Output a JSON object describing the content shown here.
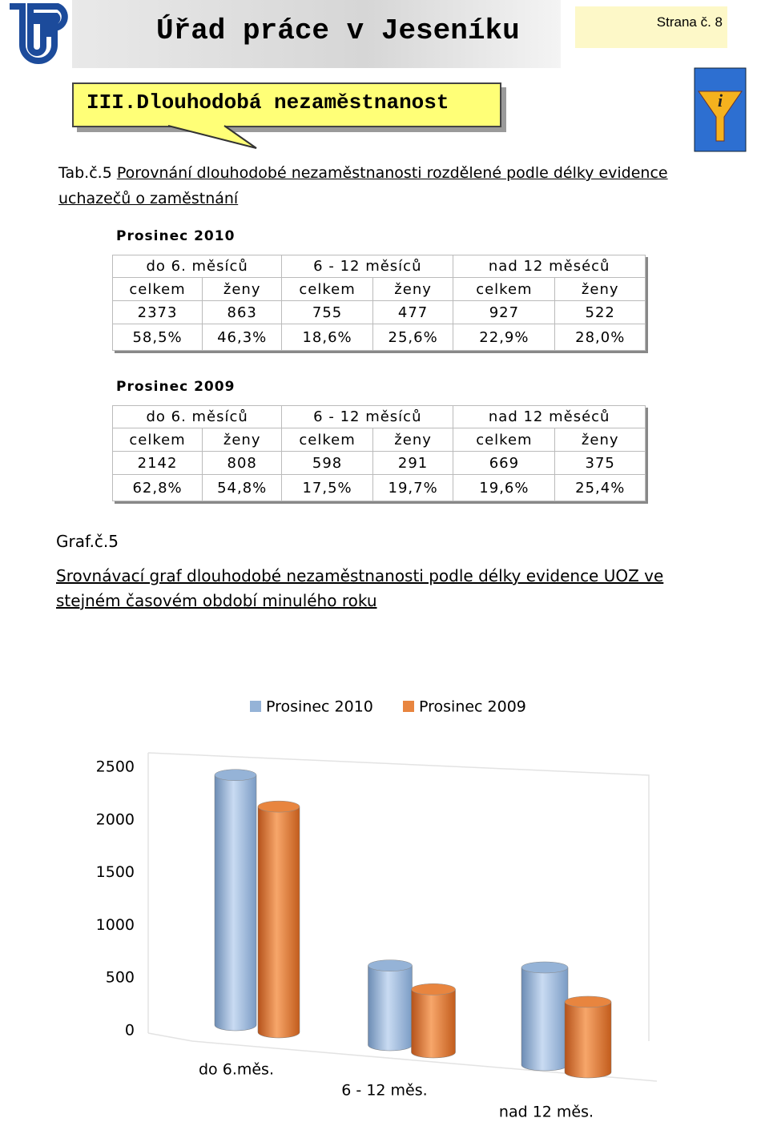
{
  "header": {
    "title": "Úřad práce v Jeseníku",
    "page": "Strana č. 8"
  },
  "section": {
    "title": "III.Dlouhodobá nezaměstnanost"
  },
  "table_caption": {
    "label": "Tab.č.5",
    "text": "Porovnání dlouhodobé nezaměstnanosti rozdělené podle délky evidence uchazečů o zaměstnání"
  },
  "tables": [
    {
      "title": "Prosinec 2010",
      "groups": [
        "do 6. měsíců",
        "6 - 12 měsíců",
        "nad 12 měséců"
      ],
      "columns": [
        "celkem",
        "ženy",
        "celkem",
        "ženy",
        "celkem",
        "ženy"
      ],
      "rows": [
        [
          "2373",
          "863",
          "755",
          "477",
          "927",
          "522"
        ],
        [
          "58,5%",
          "46,3%",
          "18,6%",
          "25,6%",
          "22,9%",
          "28,0%"
        ]
      ]
    },
    {
      "title": "Prosinec 2009",
      "groups": [
        "do 6. měsíců",
        "6 - 12 měsíců",
        "nad 12 měséců"
      ],
      "columns": [
        "celkem",
        "ženy",
        "celkem",
        "ženy",
        "celkem",
        "ženy"
      ],
      "rows": [
        [
          "2142",
          "808",
          "598",
          "291",
          "669",
          "375"
        ],
        [
          "62,8%",
          "54,8%",
          "17,5%",
          "19,7%",
          "19,6%",
          "25,4%"
        ]
      ]
    }
  ],
  "chart_caption": {
    "label": "Graf.č.5",
    "text": "Srovnávací graf dlouhodobé nezaměstnanosti podle délky evidence UOZ ve stejném časovém období minulého roku"
  },
  "chart_data": {
    "type": "bar",
    "categories": [
      "do 6.měs.",
      "6 - 12 měs.",
      "nad 12 měs."
    ],
    "series": [
      {
        "name": "Prosinec 2010",
        "color": "#95b3d7",
        "values": [
          2373,
          755,
          927
        ]
      },
      {
        "name": "Prosinec 2009",
        "color": "#e8853f",
        "values": [
          2142,
          598,
          669
        ]
      }
    ],
    "ylim": [
      0,
      2500
    ],
    "yticks": [
      0,
      500,
      1000,
      1500,
      2000,
      2500
    ],
    "grid": false,
    "legend": "top"
  }
}
